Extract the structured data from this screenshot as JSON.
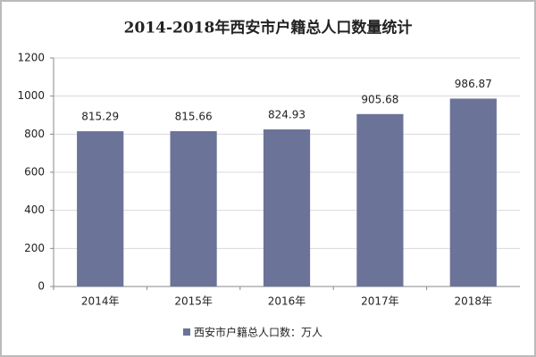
{
  "chart_data": {
    "type": "bar",
    "title": "2014-2018年西安市户籍总人口数量统计",
    "categories": [
      "2014年",
      "2015年",
      "2016年",
      "2017年",
      "2018年"
    ],
    "series": [
      {
        "name": "西安市户籍总人口数：万人",
        "color": "#6b7399",
        "values": [
          815.29,
          815.66,
          824.93,
          905.68,
          986.87
        ]
      }
    ],
    "ylim": [
      0,
      1200
    ],
    "yticks": [
      0,
      200,
      400,
      600,
      800,
      1000,
      1200
    ],
    "grid": true,
    "legend": "bottom"
  }
}
